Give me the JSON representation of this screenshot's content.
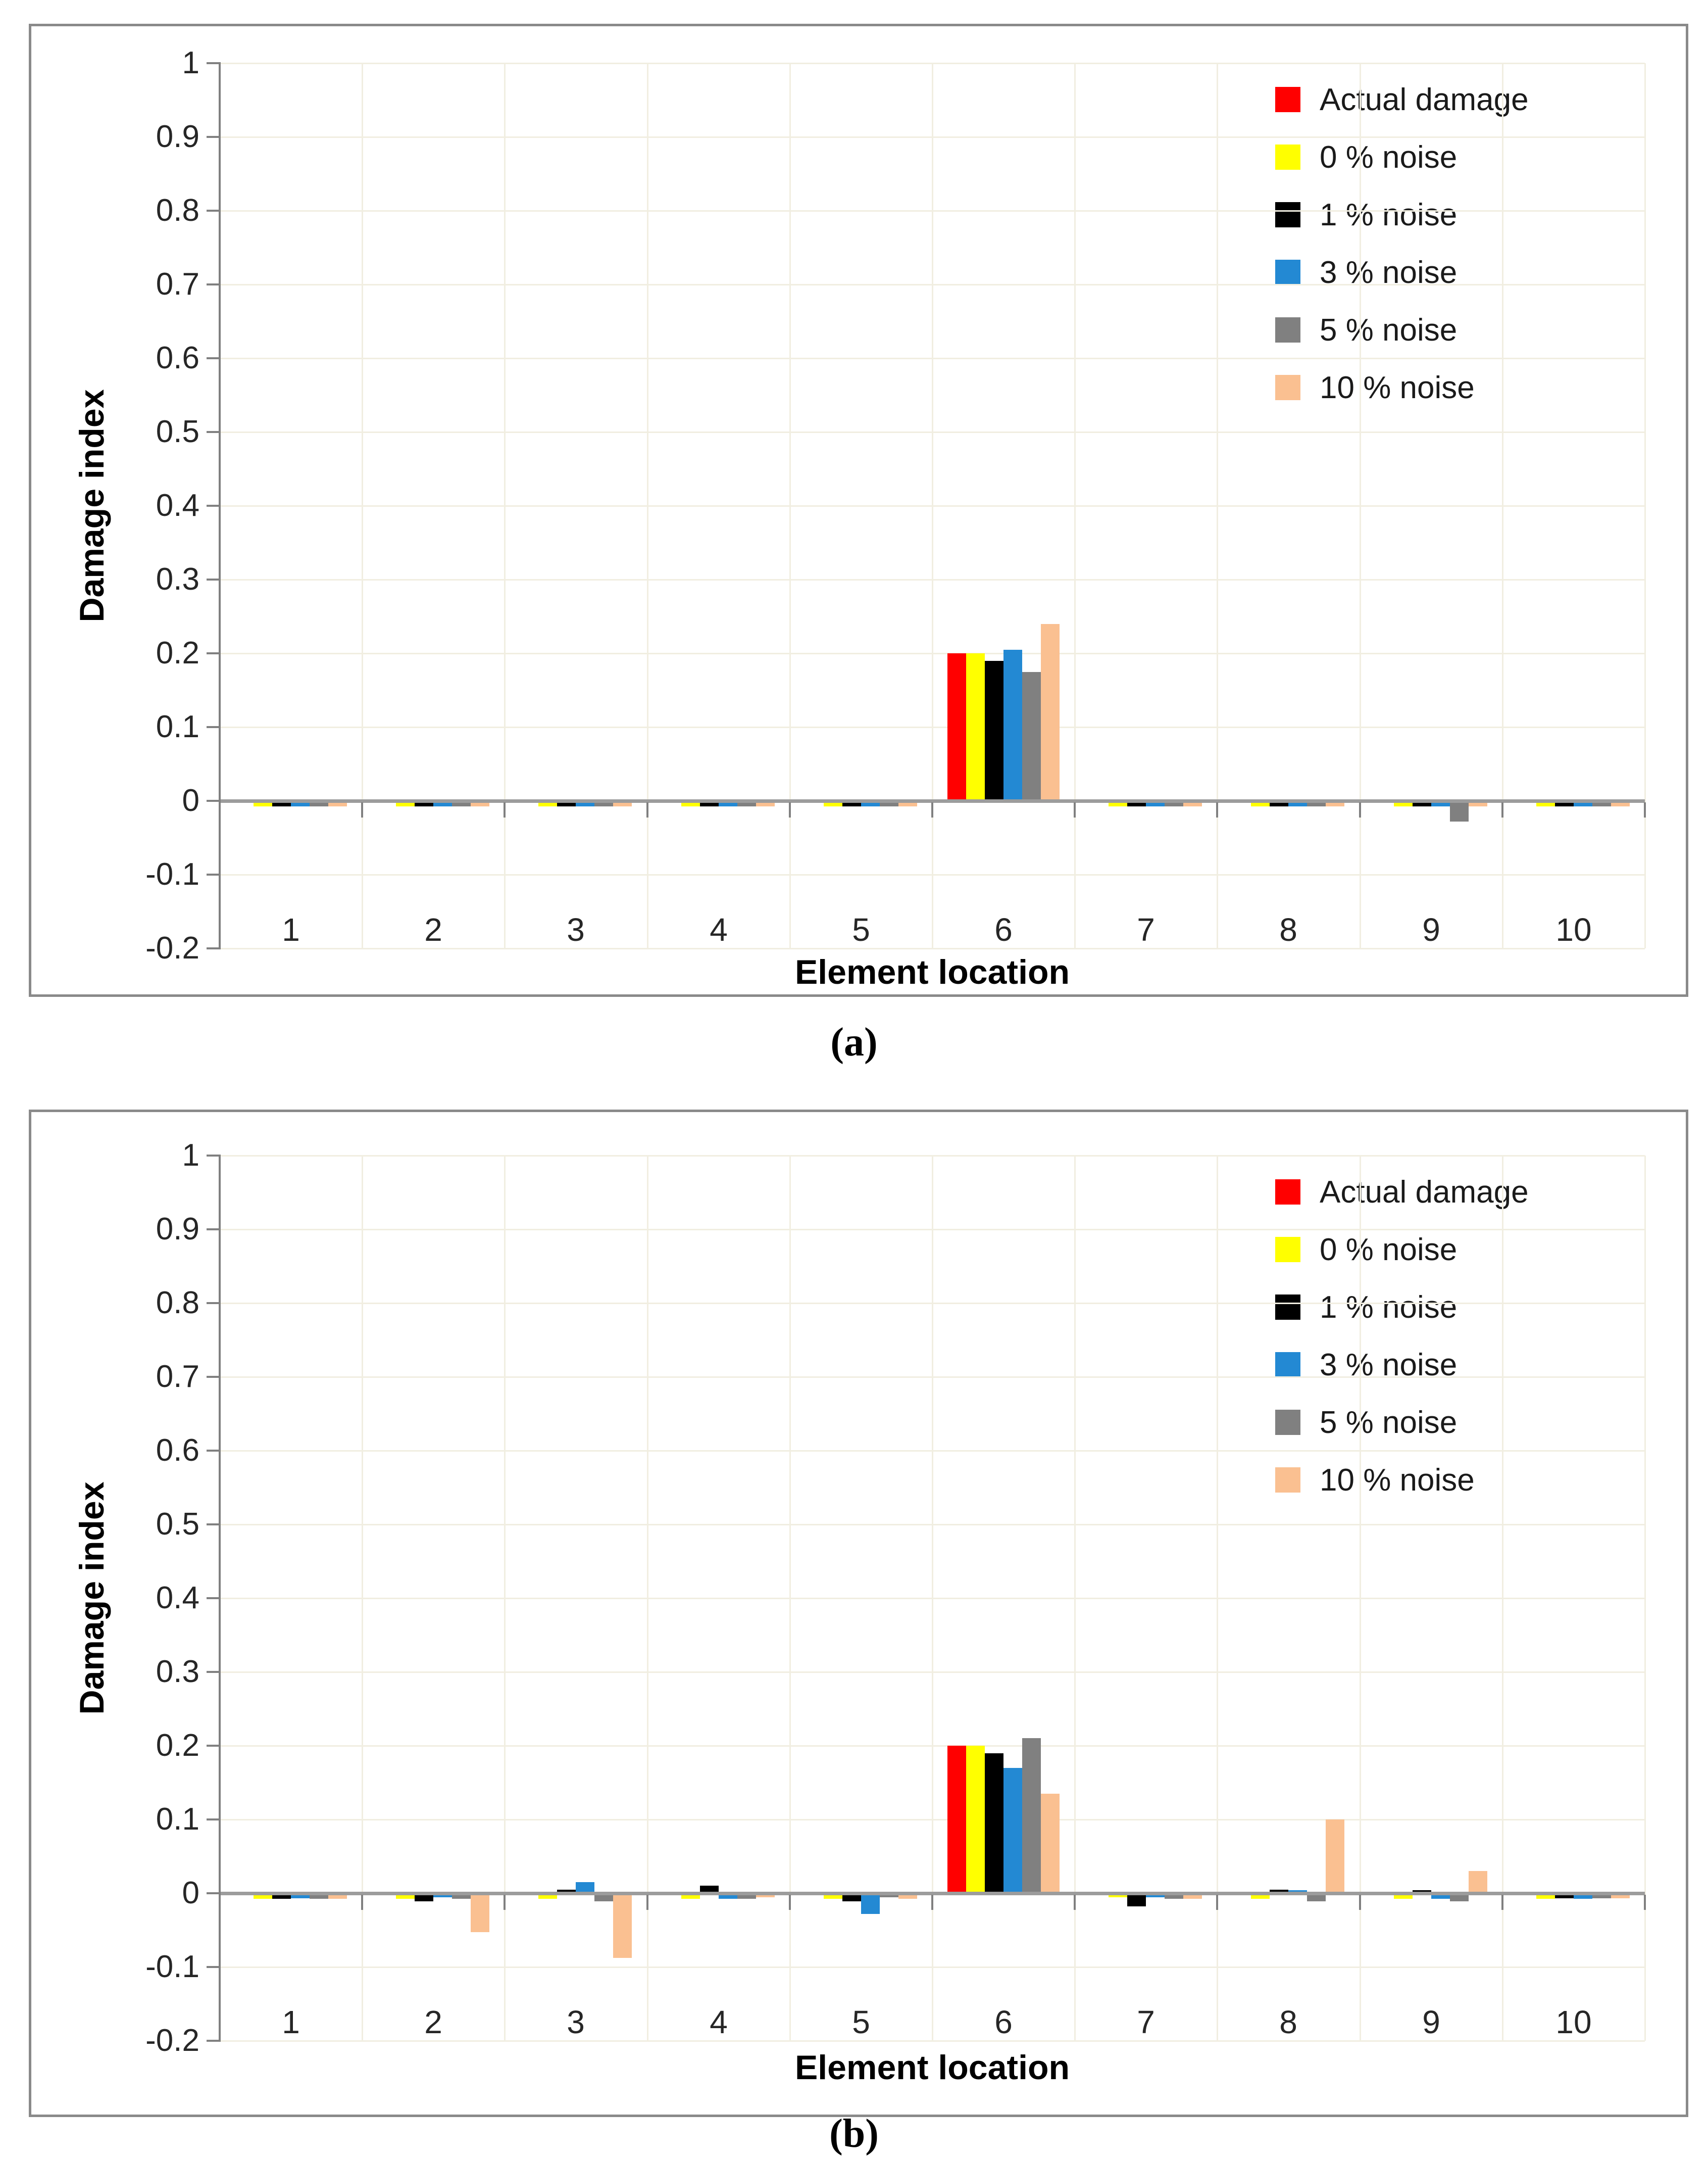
{
  "figure": {
    "caption_a": "(a)",
    "caption_b": "(b)"
  },
  "colors": {
    "background": "#ffffff",
    "panel_border": "#8a8a8a",
    "grid": "#f1eee1",
    "axis": "#808080",
    "zero_line": "#9c9c9c",
    "series_actual": "#ff0000",
    "series_0pct": "#ffff00",
    "series_1pct": "#000000",
    "series_3pct": "#2389d3",
    "series_5pct": "#808080",
    "series_10pct": "#fac091"
  },
  "chart_data": [
    {
      "id": "a",
      "caption": "(a)",
      "type": "bar",
      "title": "",
      "xlabel": "Element location",
      "ylabel": "Damage index",
      "categories": [
        "1",
        "2",
        "3",
        "4",
        "5",
        "6",
        "7",
        "8",
        "9",
        "10"
      ],
      "ylim": [
        -0.2,
        1
      ],
      "ytick_step": 0.1,
      "ytick_labels": [
        "1",
        "0.9",
        "0.8",
        "0.7",
        "0.6",
        "0.5",
        "0.4",
        "0.3",
        "0.2",
        "0.1",
        "0",
        "-0.1",
        "-0.2"
      ],
      "grid": true,
      "legend_position": "upper-right-inside",
      "series": [
        {
          "name": "Actual damage",
          "color": "#ff0000",
          "values": [
            0,
            0,
            0,
            0,
            0,
            0.2,
            0,
            0,
            0,
            0
          ]
        },
        {
          "name": "0 % noise",
          "color": "#ffff00",
          "values": [
            -0.005,
            -0.005,
            -0.005,
            -0.005,
            -0.005,
            0.2,
            -0.005,
            -0.005,
            -0.005,
            -0.005
          ]
        },
        {
          "name": "1 % noise",
          "color": "#000000",
          "values": [
            -0.005,
            -0.005,
            -0.005,
            -0.005,
            -0.005,
            0.19,
            -0.005,
            -0.005,
            -0.005,
            -0.005
          ]
        },
        {
          "name": "3 % noise",
          "color": "#2389d3",
          "values": [
            -0.005,
            -0.005,
            -0.005,
            -0.005,
            -0.005,
            0.205,
            -0.005,
            -0.005,
            -0.005,
            -0.005
          ]
        },
        {
          "name": "5 % noise",
          "color": "#808080",
          "values": [
            -0.005,
            -0.005,
            -0.005,
            -0.005,
            -0.005,
            0.175,
            -0.005,
            -0.005,
            -0.025,
            -0.005
          ]
        },
        {
          "name": "10 % noise",
          "color": "#fac091",
          "values": [
            -0.005,
            -0.005,
            -0.005,
            -0.005,
            -0.005,
            0.24,
            -0.005,
            -0.005,
            -0.005,
            -0.005
          ]
        }
      ]
    },
    {
      "id": "b",
      "caption": "(b)",
      "type": "bar",
      "title": "",
      "xlabel": "Element location",
      "ylabel": "Damage index",
      "categories": [
        "1",
        "2",
        "3",
        "4",
        "5",
        "6",
        "7",
        "8",
        "9",
        "10"
      ],
      "ylim": [
        -0.2,
        1
      ],
      "ytick_step": 0.1,
      "ytick_labels": [
        "1",
        "0.9",
        "0.8",
        "0.7",
        "0.6",
        "0.5",
        "0.4",
        "0.3",
        "0.2",
        "0.1",
        "0",
        "-0.1",
        "-0.2"
      ],
      "grid": true,
      "legend_position": "upper-right-inside",
      "series": [
        {
          "name": "Actual damage",
          "color": "#ff0000",
          "values": [
            0,
            0,
            0,
            0,
            0,
            0.2,
            0,
            0,
            0,
            0
          ]
        },
        {
          "name": "0 % noise",
          "color": "#ffff00",
          "values": [
            -0.005,
            -0.005,
            -0.005,
            -0.005,
            -0.005,
            0.2,
            -0.003,
            -0.005,
            -0.005,
            -0.005
          ]
        },
        {
          "name": "1 % noise",
          "color": "#000000",
          "values": [
            -0.005,
            -0.008,
            0.005,
            0.01,
            -0.008,
            0.19,
            -0.015,
            0.005,
            0.004,
            -0.004
          ]
        },
        {
          "name": "3 % noise",
          "color": "#2389d3",
          "values": [
            -0.004,
            -0.003,
            0.015,
            -0.005,
            -0.025,
            0.17,
            -0.003,
            0.004,
            -0.005,
            -0.005
          ]
        },
        {
          "name": "5 % noise",
          "color": "#808080",
          "values": [
            -0.005,
            -0.005,
            -0.008,
            -0.005,
            -0.003,
            0.21,
            -0.005,
            -0.008,
            -0.008,
            -0.004
          ]
        },
        {
          "name": "10 % noise",
          "color": "#fac091",
          "values": [
            -0.005,
            -0.05,
            -0.085,
            -0.003,
            -0.005,
            0.135,
            -0.005,
            0.1,
            0.03,
            -0.004
          ]
        }
      ]
    }
  ]
}
